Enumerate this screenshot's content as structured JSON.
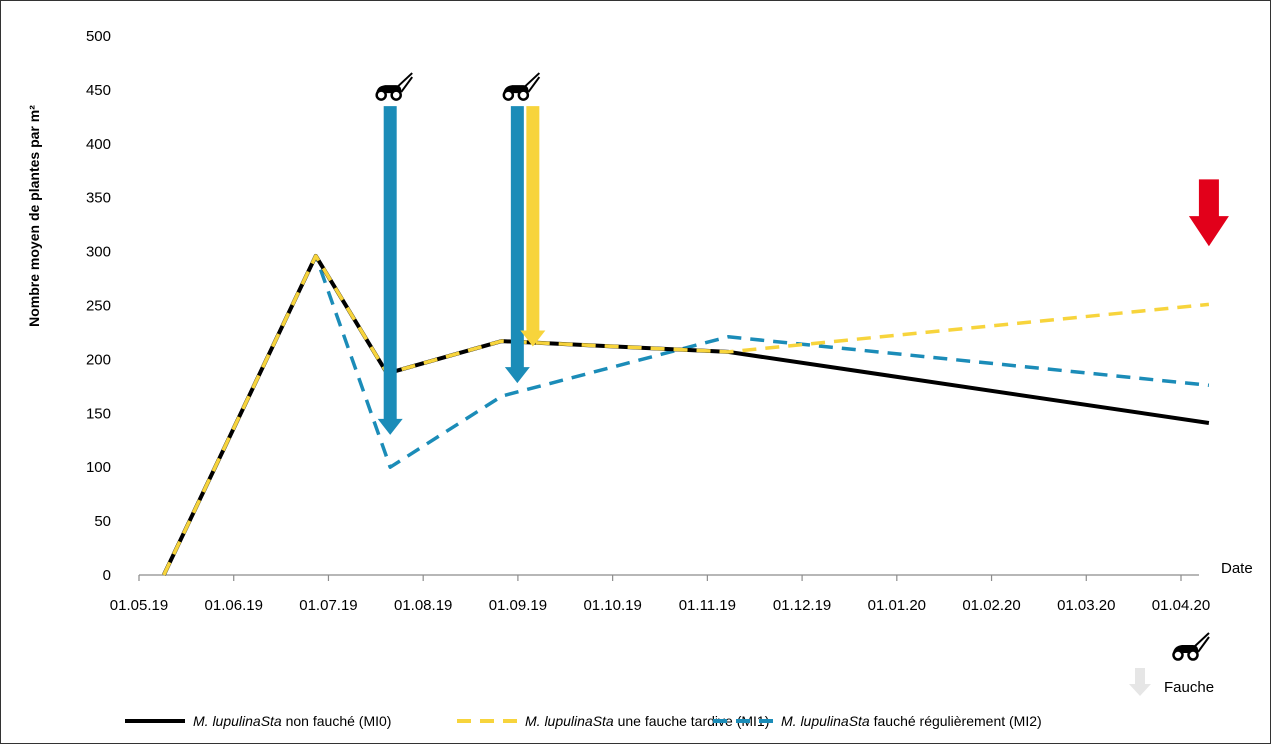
{
  "chart_data": {
    "type": "line",
    "ylabel": "Nombre moyen de plantes par m²",
    "xlabel": "Date",
    "ylim": [
      0,
      500
    ],
    "y_ticks": [
      0,
      50,
      100,
      150,
      200,
      250,
      300,
      350,
      400,
      450,
      500
    ],
    "x_tick_labels": [
      "01.05.19",
      "01.06.19",
      "01.07.19",
      "01.08.19",
      "01.09.19",
      "01.10.19",
      "01.11.19",
      "01.12.19",
      "01.01.20",
      "01.02.20",
      "01.03.20",
      "01.04.20"
    ],
    "series": [
      {
        "name": "MI0",
        "legend_italic": "M. lupulinaSta",
        "legend_rest": " non fauché (MI0)",
        "color": "#000000",
        "style": "solid",
        "points": [
          [
            "2019-05-09",
            0
          ],
          [
            "2019-06-27",
            296
          ],
          [
            "2019-07-20",
            187
          ],
          [
            "2019-08-26",
            217
          ],
          [
            "2019-11-07",
            207
          ],
          [
            "2020-04-10",
            141
          ]
        ]
      },
      {
        "name": "MI1",
        "legend_italic": "M. lupulinaSta",
        "legend_rest": " une fauche tardive (MI1)",
        "color": "#f7d43c",
        "style": "dashed",
        "points": [
          [
            "2019-05-09",
            0
          ],
          [
            "2019-06-27",
            296
          ],
          [
            "2019-07-20",
            187
          ],
          [
            "2019-08-26",
            217
          ],
          [
            "2019-11-07",
            207
          ],
          [
            "2020-04-10",
            251
          ]
        ]
      },
      {
        "name": "MI2",
        "legend_italic": "M. lupulinaSta",
        "legend_rest": " fauché régulièrement (MI2)",
        "color": "#1b8cb8",
        "style": "dashed",
        "points": [
          [
            "2019-05-09",
            0
          ],
          [
            "2019-06-27",
            296
          ],
          [
            "2019-07-21",
            100
          ],
          [
            "2019-08-26",
            166
          ],
          [
            "2019-11-07",
            221
          ],
          [
            "2020-04-10",
            176
          ]
        ]
      }
    ],
    "annotations": [
      {
        "type": "mowing-arrow",
        "color": "#1b8cb8",
        "date": "2019-07-21",
        "from": 435,
        "to": 130,
        "mower_icon": true
      },
      {
        "type": "mowing-arrow",
        "color": "#1b8cb8",
        "date": "2019-08-31",
        "from": 435,
        "to": 178,
        "mower_icon": true
      },
      {
        "type": "mowing-arrow",
        "color": "#f7d43c",
        "date": "2019-09-05",
        "from": 435,
        "to": 212,
        "mower_icon": false
      },
      {
        "type": "arrow",
        "color": "#e2001a",
        "date": "2020-04-10",
        "from": 367,
        "to": 305,
        "mower_icon": false
      }
    ],
    "fauche_label": "Fauche",
    "grid": false,
    "legend_position": "bottom"
  }
}
